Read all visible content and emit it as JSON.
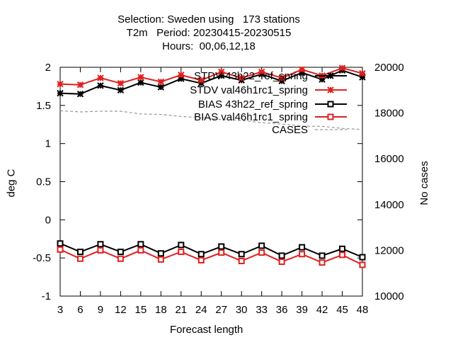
{
  "chart_data": {
    "type": "line",
    "title_lines": [
      "Selection: Sweden using   173 stations",
      "T2m   Period: 20230415-20230515",
      "Hours:  00,06,12,18"
    ],
    "xlabel": "Forecast length",
    "ylabel": "deg C",
    "y2label": "No cases",
    "x": [
      3,
      6,
      9,
      12,
      15,
      18,
      21,
      24,
      27,
      30,
      33,
      36,
      39,
      42,
      45,
      48
    ],
    "xlim": [
      3,
      48
    ],
    "ylim": [
      -1,
      2
    ],
    "y2lim": [
      10000,
      20000
    ],
    "yticks": [
      "-1",
      "-0.5",
      "0",
      "0.5",
      "1",
      "1.5",
      "2"
    ],
    "y2ticks": [
      "10000",
      "12000",
      "14000",
      "16000",
      "18000",
      "20000"
    ],
    "xticks": [
      "3",
      "6",
      "9",
      "12",
      "15",
      "18",
      "21",
      "24",
      "27",
      "30",
      "33",
      "36",
      "39",
      "42",
      "45",
      "48"
    ],
    "grid": false,
    "legend_placement": "top-right",
    "series": [
      {
        "name": "STDV 43h22_ref_spring",
        "axis": "y",
        "color": "#000000",
        "marker": "star",
        "values": [
          1.66,
          1.65,
          1.76,
          1.7,
          1.8,
          1.74,
          1.85,
          1.79,
          1.89,
          1.83,
          1.91,
          1.82,
          1.93,
          1.84,
          1.96,
          1.87
        ]
      },
      {
        "name": "STDV val46h1rc1_spring",
        "axis": "y",
        "color": "#e02020",
        "marker": "star",
        "values": [
          1.78,
          1.77,
          1.86,
          1.79,
          1.87,
          1.81,
          1.9,
          1.83,
          1.94,
          1.86,
          1.94,
          1.86,
          1.97,
          1.89,
          1.99,
          1.92
        ]
      },
      {
        "name": "BIAS 43h22_ref_spring",
        "axis": "y",
        "color": "#000000",
        "marker": "square",
        "values": [
          -0.31,
          -0.42,
          -0.32,
          -0.42,
          -0.32,
          -0.44,
          -0.33,
          -0.45,
          -0.35,
          -0.45,
          -0.34,
          -0.47,
          -0.36,
          -0.47,
          -0.38,
          -0.49
        ]
      },
      {
        "name": "BIAS val46h1rc1_spring",
        "axis": "y",
        "color": "#e02020",
        "marker": "square",
        "values": [
          -0.39,
          -0.51,
          -0.4,
          -0.51,
          -0.4,
          -0.52,
          -0.42,
          -0.53,
          -0.43,
          -0.54,
          -0.43,
          -0.55,
          -0.45,
          -0.56,
          -0.46,
          -0.59
        ]
      },
      {
        "name": "CASES",
        "axis": "y2",
        "color": "#999999",
        "marker": "none",
        "dashed": true,
        "values": [
          18100,
          18050,
          18080,
          18080,
          17960,
          17940,
          17850,
          17800,
          17720,
          17680,
          17580,
          17520,
          17430,
          17420,
          17330,
          17280
        ]
      }
    ]
  }
}
